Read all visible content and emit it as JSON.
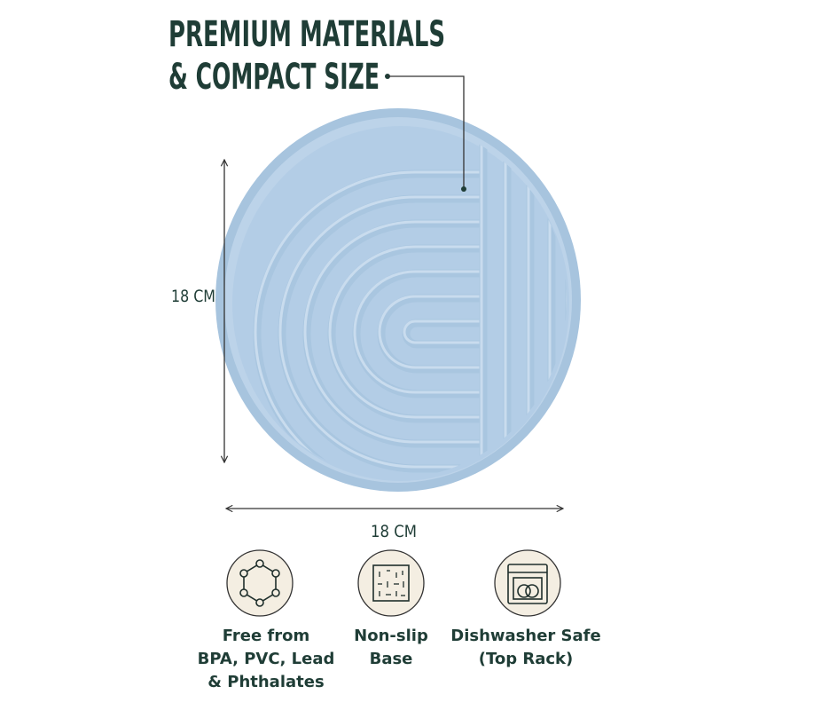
{
  "header": {
    "title_lines": [
      "PREMIUM MATERIALS",
      "& COMPACT SIZE"
    ]
  },
  "dimensions": {
    "height": "18 CM",
    "width": "18 CM"
  },
  "features": [
    {
      "label_lines": [
        "Free from",
        "BPA, PVC, Lead",
        "& Phthalates"
      ]
    },
    {
      "label_lines": [
        "Non-slip",
        "Base"
      ]
    },
    {
      "label_lines": [
        "Dishwasher Safe",
        "(Top Rack)"
      ]
    }
  ]
}
